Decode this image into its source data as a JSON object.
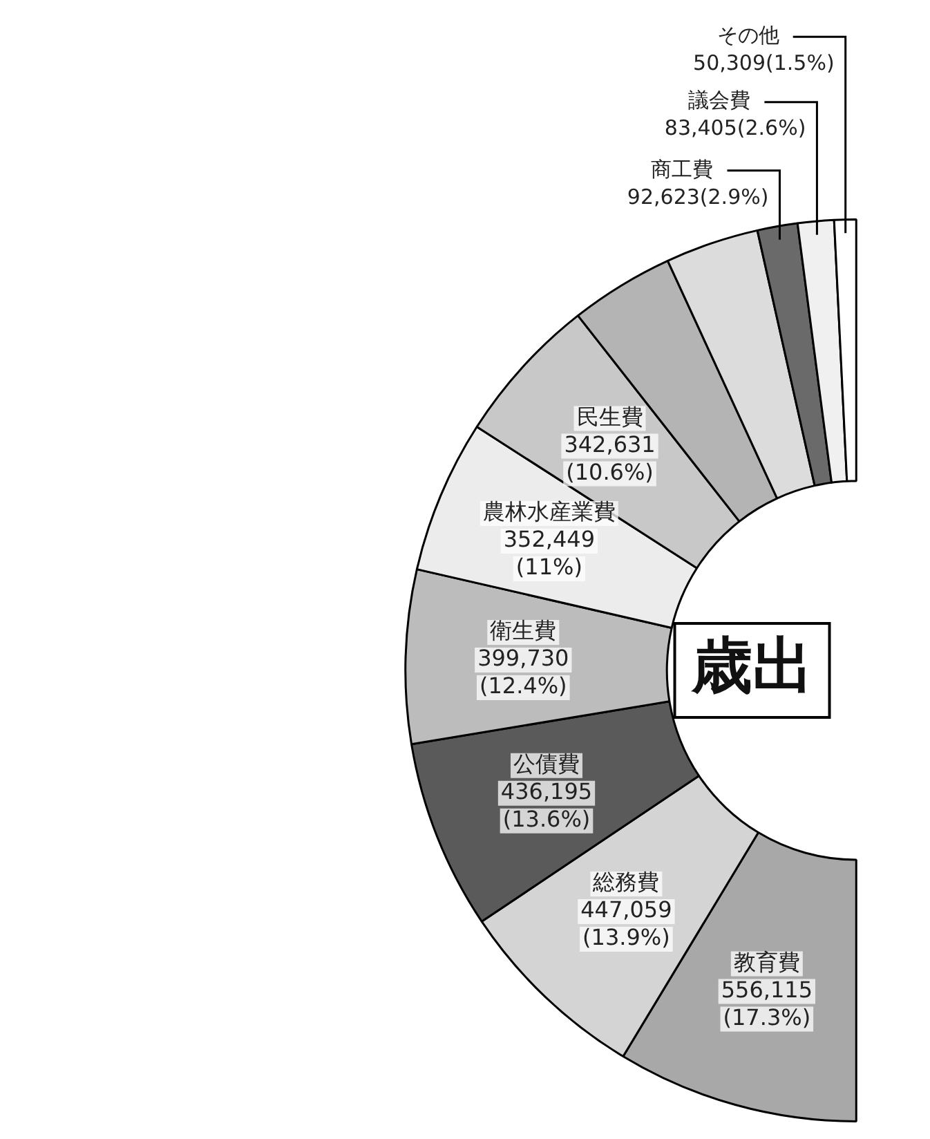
{
  "chart_data": {
    "type": "donut",
    "title": "歳出",
    "categories": [
      "教育費",
      "総務費",
      "公債費",
      "衛生費",
      "農林水産業費",
      "民生費",
      null,
      null,
      "商工費",
      "議会費",
      "その他"
    ],
    "values": [
      556115,
      447059,
      436195,
      399730,
      352449,
      342631,
      239300,
      215200,
      92623,
      83405,
      50309
    ],
    "value_labels": [
      "556,115 (17.3%)",
      "447,059 (13.9%)",
      "436,195 (13.6%)",
      "399,730 (12.4%)",
      "352,449 (11%)",
      "342,631 (10.6%)",
      null,
      null,
      "92,623(2.9%)",
      "83,405(2.6%)",
      "50,309(1.5%)"
    ],
    "colors": [
      "#a8a8a8",
      "#d4d4d4",
      "#5a5a5a",
      "#bcbcbc",
      "#ececec",
      "#c8c8c8",
      "#b4b4b4",
      "#dcdcdc",
      "#6a6a6a",
      "#f0f0f0",
      "#ffffff"
    ],
    "legend": false
  }
}
